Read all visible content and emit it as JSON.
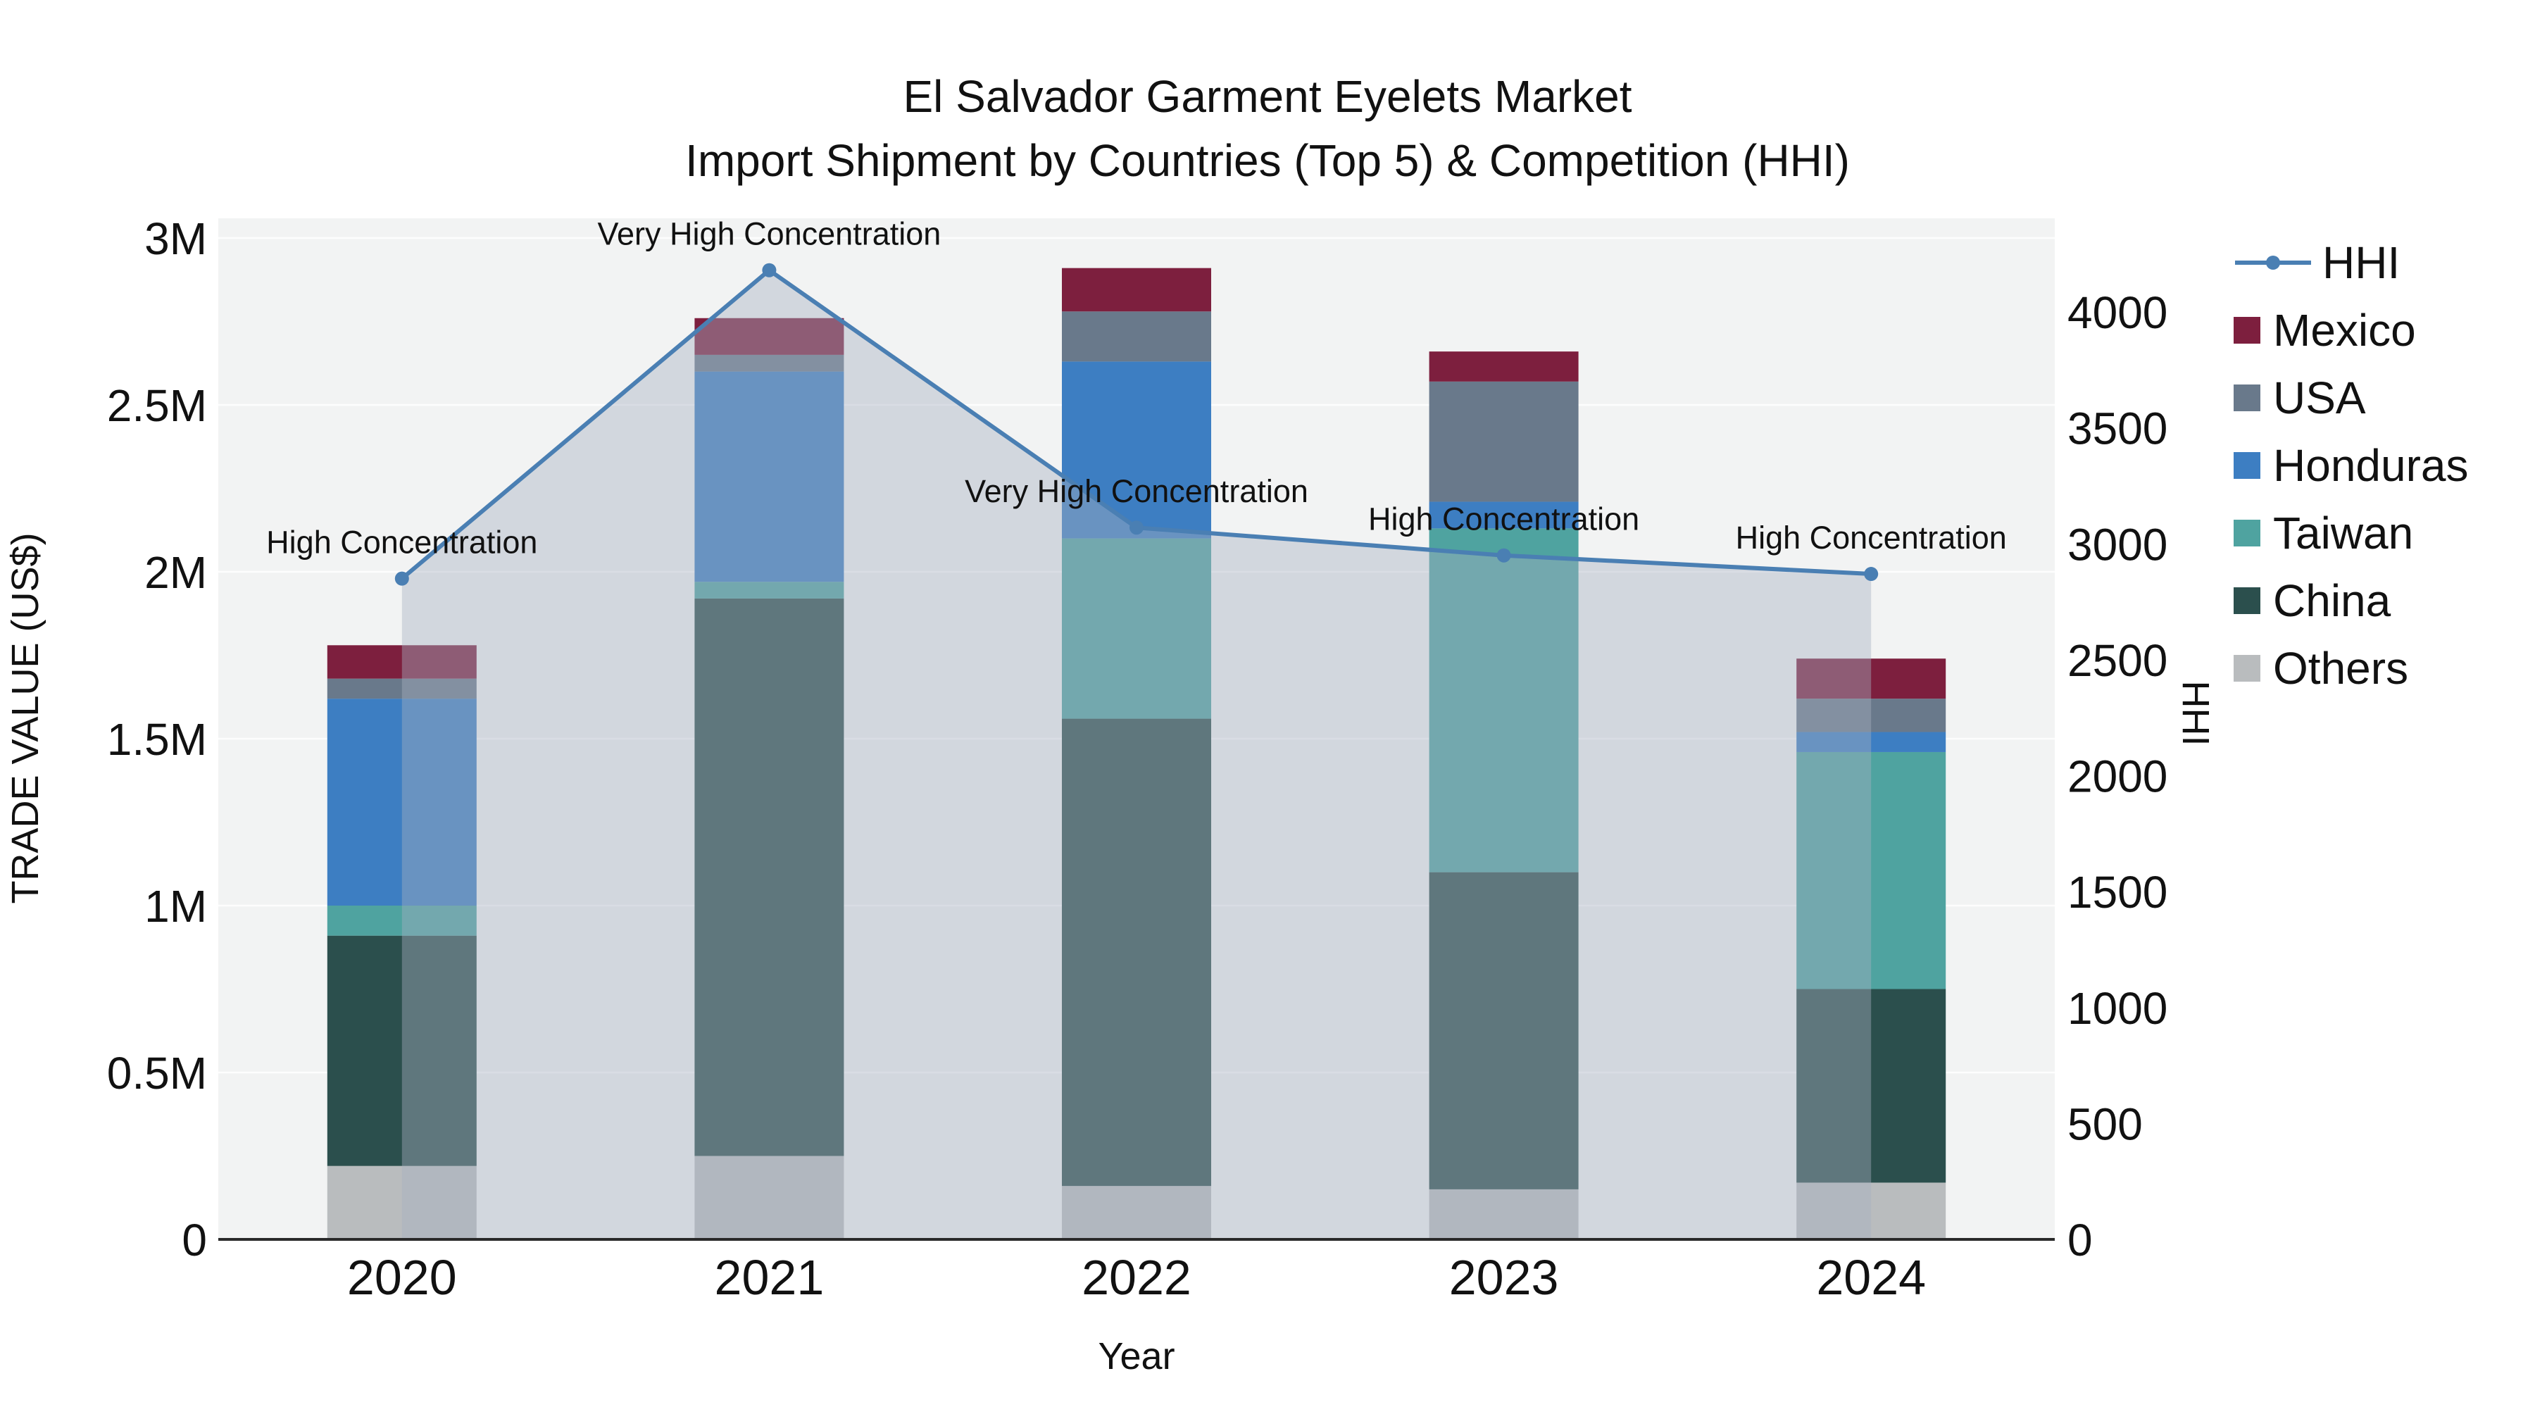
{
  "chart_data": {
    "type": "stacked-bar-with-line",
    "title": "El Salvador Garment Eyelets Market",
    "subtitle": "Import Shipment by Countries (Top 5) & Competition (HHI)",
    "xlabel": "Year",
    "ylabel": "TRADE VALUE (US$)",
    "y2label": "HHI",
    "categories": [
      "2020",
      "2021",
      "2022",
      "2023",
      "2024"
    ],
    "series": [
      {
        "name": "Others",
        "type": "bar",
        "color": "#b9bcbe",
        "values": [
          220000,
          250000,
          160000,
          150000,
          170000
        ]
      },
      {
        "name": "China",
        "type": "bar",
        "color": "#2b4f4d",
        "values": [
          690000,
          1670000,
          1400000,
          950000,
          580000
        ]
      },
      {
        "name": "Taiwan",
        "type": "bar",
        "color": "#4fa3a0",
        "values": [
          90000,
          50000,
          540000,
          1030000,
          710000
        ]
      },
      {
        "name": "Honduras",
        "type": "bar",
        "color": "#3d7ec2",
        "values": [
          620000,
          630000,
          530000,
          80000,
          60000
        ]
      },
      {
        "name": "USA",
        "type": "bar",
        "color": "#69798b",
        "values": [
          60000,
          50000,
          150000,
          360000,
          100000
        ]
      },
      {
        "name": "Mexico",
        "type": "bar",
        "color": "#7d1f3e",
        "values": [
          100000,
          110000,
          130000,
          90000,
          120000
        ]
      },
      {
        "name": "HHI",
        "type": "line",
        "axis": "y2",
        "color": "#4a7fb3",
        "area_fill": "#a8b1c0",
        "area_opacity": 0.42,
        "values": [
          2850,
          4180,
          3070,
          2950,
          2870
        ]
      }
    ],
    "annotations": [
      {
        "x": "2020",
        "text": "High Concentration"
      },
      {
        "x": "2021",
        "text": "Very High Concentration"
      },
      {
        "x": "2022",
        "text": "Very High Concentration"
      },
      {
        "x": "2023",
        "text": "High Concentration"
      },
      {
        "x": "2024",
        "text": "High Concentration"
      }
    ],
    "y_axis": {
      "labels": [
        "0",
        "0.5M",
        "1M",
        "1.5M",
        "2M",
        "2.5M",
        "3M"
      ],
      "values": [
        0,
        500000,
        1000000,
        1500000,
        2000000,
        2500000,
        3000000
      ],
      "top_value": 3000000
    },
    "y2_axis": {
      "labels": [
        "0",
        "500",
        "1000",
        "1500",
        "2000",
        "2500",
        "3000",
        "3500",
        "4000"
      ],
      "values": [
        0,
        500,
        1000,
        1500,
        2000,
        2500,
        3000,
        3500,
        4000
      ],
      "top_value": 4000
    },
    "legend": [
      {
        "label": "HHI",
        "marker": "line"
      },
      {
        "label": "Mexico",
        "marker": "square"
      },
      {
        "label": "USA",
        "marker": "square"
      },
      {
        "label": "Honduras",
        "marker": "square"
      },
      {
        "label": "Taiwan",
        "marker": "square"
      },
      {
        "label": "China",
        "marker": "square"
      },
      {
        "label": "Others",
        "marker": "square"
      }
    ],
    "plot_bg": "#f2f3f3",
    "grid_color": "#fdfdfd",
    "spine_color": "#2a2a2a"
  }
}
